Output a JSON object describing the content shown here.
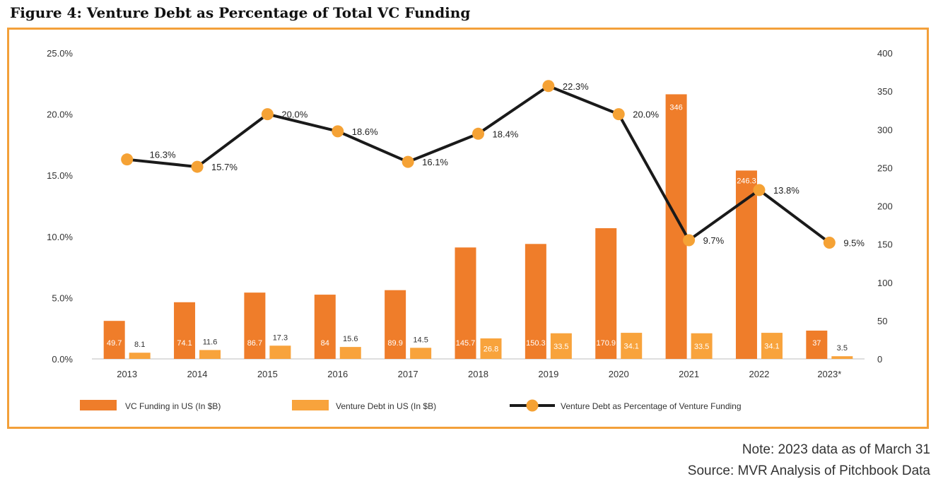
{
  "title": "Figure 4: Venture Debt as Percentage of Total VC Funding",
  "note": "Note: 2023 data as of March 31",
  "source": "Source: MVR Analysis of Pitchbook Data",
  "colors": {
    "frame": "#f3a03a",
    "vc_bar": "#ef7d2a",
    "debt_bar": "#f8a33c",
    "line": "#1a1a1a",
    "marker": "#f5a235"
  },
  "chart_data": {
    "type": "bar",
    "categories": [
      "2013",
      "2014",
      "2015",
      "2016",
      "2017",
      "2018",
      "2019",
      "2020",
      "2021",
      "2022",
      "2023*"
    ],
    "series": [
      {
        "name": "VC Funding in US (In $B)",
        "type": "bar",
        "axis": "right",
        "values": [
          49.7,
          74.1,
          86.7,
          84,
          89.9,
          145.7,
          150.3,
          170.9,
          346,
          246.3,
          37
        ],
        "labels": [
          "49.7",
          "74.1",
          "86.7",
          "84",
          "89.9",
          "145.7",
          "150.3",
          "170.9",
          "346",
          "246.3",
          "37"
        ]
      },
      {
        "name": "Venture Debt in US (In $B)",
        "type": "bar",
        "axis": "right",
        "values": [
          8.1,
          11.6,
          17.3,
          15.6,
          14.5,
          26.8,
          33.5,
          34.1,
          33.5,
          34.1,
          3.5
        ],
        "labels": [
          "8.1",
          "11.6",
          "17.3",
          "15.6",
          "14.5",
          "26.8",
          "33.5",
          "34.1",
          "33.5",
          "34.1",
          "3.5"
        ]
      },
      {
        "name": "Venture Debt as Percentage of Venture Funding",
        "type": "line",
        "axis": "left",
        "values": [
          16.3,
          15.7,
          20.0,
          18.6,
          16.1,
          18.4,
          22.3,
          20.0,
          9.7,
          13.8,
          9.5
        ],
        "labels": [
          "16.3%",
          "15.7%",
          "20.0%",
          "18.6%",
          "16.1%",
          "18.4%",
          "22.3%",
          "20.0%",
          "9.7%",
          "13.8%",
          "9.5%"
        ]
      }
    ],
    "left_axis": {
      "min": 0,
      "max": 25,
      "ticks": [
        "0.0%",
        "5.0%",
        "10.0%",
        "15.0%",
        "20.0%",
        "25.0%"
      ]
    },
    "right_axis": {
      "min": 0,
      "max": 400,
      "ticks": [
        "0",
        "50",
        "100",
        "150",
        "200",
        "250",
        "300",
        "350",
        "400"
      ]
    },
    "grid": false,
    "legend_position": "bottom"
  }
}
